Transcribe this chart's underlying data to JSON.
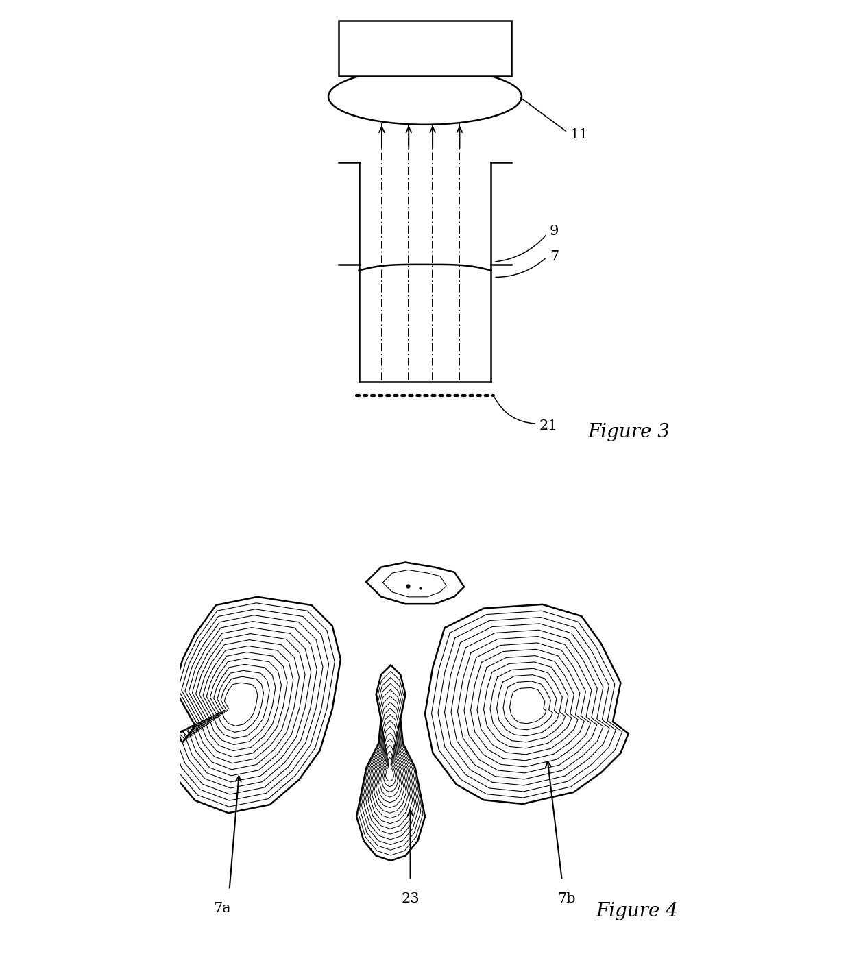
{
  "fig_width": 12.4,
  "fig_height": 14.27,
  "bg_color": "#ffffff",
  "line_color": "#000000",
  "figure3_label": "Figure 3",
  "figure4_label": "Figure 4",
  "label_11": "11",
  "label_9": "9",
  "label_7": "7",
  "label_21": "21",
  "label_7a": "7a",
  "label_23": "23",
  "label_7b": "7b",
  "font_size_fig_label": 20,
  "font_size_num_label": 15
}
